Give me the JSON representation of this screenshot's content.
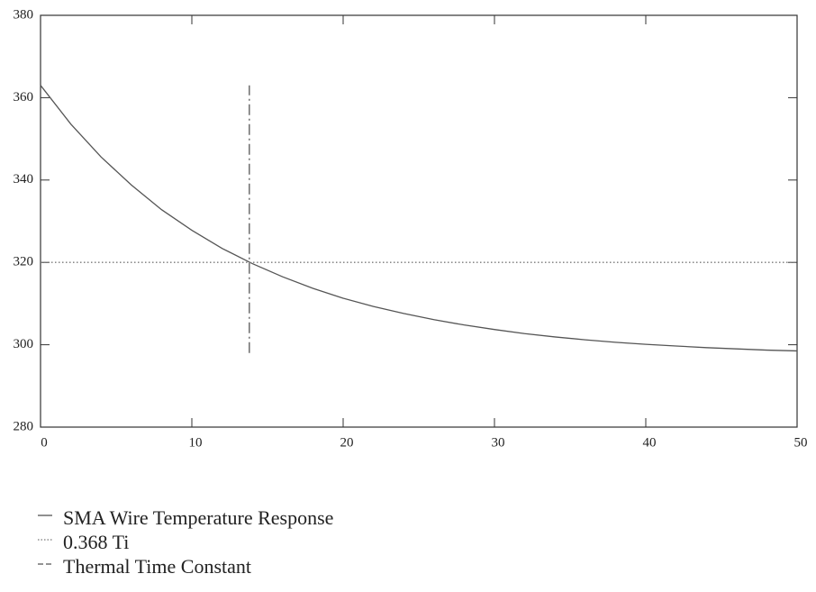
{
  "chart_data": {
    "type": "line",
    "series": [
      {
        "name": "SMA Wire Temperature Response",
        "color": "#555555",
        "dash": "solid",
        "x": [
          0,
          2,
          4,
          6,
          8,
          10,
          12,
          14,
          16,
          18,
          20,
          22,
          24,
          26,
          28,
          30,
          32,
          34,
          36,
          38,
          40,
          42,
          44,
          46,
          48,
          50
        ],
        "values": [
          363,
          353.6,
          345.6,
          338.8,
          332.8,
          327.8,
          323.4,
          319.7,
          316.5,
          313.7,
          311.3,
          309.3,
          307.6,
          306.1,
          304.8,
          303.7,
          302.7,
          301.9,
          301.2,
          300.6,
          300.1,
          299.7,
          299.3,
          299.0,
          298.7,
          298.5
        ]
      },
      {
        "name": "0.368 Ti",
        "color": "#777777",
        "dash": "dotted",
        "x": [
          0,
          50
        ],
        "values": [
          320,
          320
        ]
      },
      {
        "name": "Thermal Time Constant",
        "color": "#555555",
        "dash": "dashdot",
        "x": [
          13.8,
          13.8
        ],
        "values": [
          298,
          363
        ]
      }
    ],
    "xlim": [
      0,
      50
    ],
    "xticks": [
      0,
      10,
      20,
      30,
      40,
      50
    ],
    "ylim": [
      280,
      380
    ],
    "yticks": [
      280,
      300,
      320,
      340,
      360,
      380
    ]
  }
}
